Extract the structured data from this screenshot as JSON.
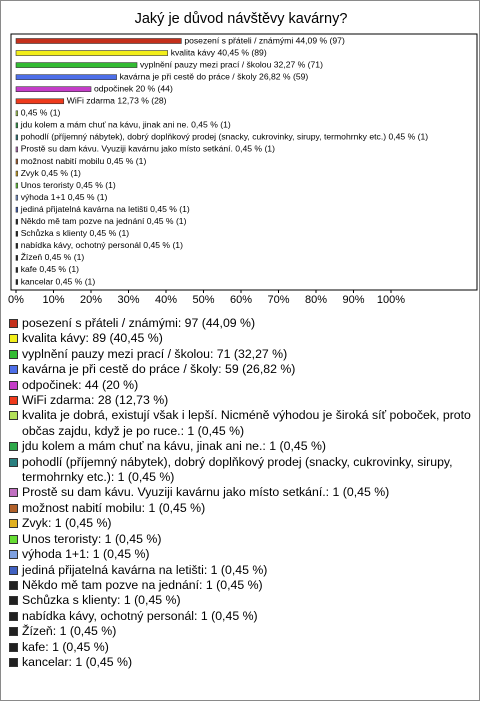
{
  "chart_data": {
    "type": "bar",
    "orientation": "horizontal",
    "title": "Jaký je důvod návštěvy kavárny?",
    "categories": [
      "posezení s přáteli / známými",
      "kvalita kávy",
      "vyplnění pauzy mezi prací / školou",
      "kavárna je při cestě do práce / školy",
      "odpočinek",
      "WiFi zdarma",
      "kvalita je dobrá, existují však i lepší. Nicméně výhodou je široká síť poboček, proto občas zajdu, když je po ruce.",
      "jdu kolem a mám chuť na kávu, jinak ani ne.",
      "pohodlí (příjemný nábytek), dobrý doplňkový prodej (snacky, cukrovinky, sirupy, termohrnky etc.)",
      "Prostě su dam kávu. Vyuziji kavárnu jako místo setkání.",
      "možnost nabití mobilu",
      "Zvyk",
      "Unos teroristy",
      "výhoda 1+1",
      "jediná přijatelná kavárna na letišti",
      "Někdo mě tam pozve na jednání",
      "Schůzka s klienty",
      "nabídka kávy, ochotný personál",
      "Žízeň",
      "kafe",
      "kancelar"
    ],
    "values": [
      44.09,
      40.45,
      32.27,
      26.82,
      20,
      12.73,
      0.45,
      0.45,
      0.45,
      0.45,
      0.45,
      0.45,
      0.45,
      0.45,
      0.45,
      0.45,
      0.45,
      0.45,
      0.45,
      0.45,
      0.45
    ],
    "value_labels": [
      "posezení s přáteli / známými 44,09 % (97)",
      "kvalita kávy 40,45 % (89)",
      "vyplnění pauzy mezi prací / školou 32,27 % (71)",
      "kavárna je při cestě do práce / školy 26,82 % (59)",
      "odpočinek 20 % (44)",
      "WiFi zdarma 12,73 % (28)",
      "0,45 % (1)",
      "jdu kolem a mám chuť na kávu, jinak ani ne. 0,45 % (1)",
      "pohodlí (příjemný nábytek), dobrý doplňkový prodej (snacky, cukrovinky, sirupy, termohrnky etc.) 0,45 % (1)",
      "Prostě su dam kávu. Vyuziji kavárnu jako místo setkání. 0,45 % (1)",
      "možnost nabití mobilu 0,45 % (1)",
      "Zvyk 0,45 % (1)",
      "Unos teroristy 0,45 % (1)",
      "výhoda 1+1 0,45 % (1)",
      "jediná přijatelná kavárna na letišti 0,45 % (1)",
      "Někdo mě tam pozve na jednání 0,45 % (1)",
      "Schůzka s klienty 0,45 % (1)",
      "nabídka kávy, ochotný personál 0,45 % (1)",
      "Žízeň 0,45 % (1)",
      "kafe 0,45 % (1)",
      "kancelar 0,45 % (1)"
    ],
    "colors": [
      "#c4301c",
      "#f2ee1a",
      "#33bb33",
      "#4d6ee8",
      "#c43dc8",
      "#ee3a1c",
      "#b3e05a",
      "#2ea84a",
      "#2a8080",
      "#c070c0",
      "#b0602a",
      "#e0b020",
      "#66dd33",
      "#7ea0e0",
      "#4060c0",
      "#202020",
      "#202020",
      "#202020",
      "#202020",
      "#202020",
      "#202020"
    ],
    "xlim": [
      0,
      100
    ],
    "xticks": [
      {
        "value": 0,
        "label": "0%"
      },
      {
        "value": 10,
        "label": "10%"
      },
      {
        "value": 20,
        "label": "20%"
      },
      {
        "value": 30,
        "label": "30%"
      },
      {
        "value": 40,
        "label": "40%"
      },
      {
        "value": 50,
        "label": "50%"
      },
      {
        "value": 60,
        "label": "60%"
      },
      {
        "value": 70,
        "label": "70%"
      },
      {
        "value": 80,
        "label": "80%"
      },
      {
        "value": 90,
        "label": "90%"
      },
      {
        "value": 100,
        "label": "100%"
      }
    ],
    "grid": false,
    "legend": {
      "position": "bottom",
      "labels": [
        "posezení s přáteli / známými: 97 (44,09 %)",
        "kvalita kávy: 89 (40,45 %)",
        "vyplnění pauzy mezi prací / školou: 71 (32,27 %)",
        "kavárna je při cestě do práce / školy: 59 (26,82 %)",
        "odpočinek: 44 (20 %)",
        "WiFi zdarma: 28 (12,73 %)",
        "kvalita je dobrá, existují však i lepší. Nicméně výhodou je široká síť poboček, proto občas zajdu, když je po ruce.: 1 (0,45 %)",
        "jdu kolem a mám chuť na kávu, jinak ani ne.: 1 (0,45 %)",
        "pohodlí (příjemný nábytek), dobrý doplňkový prodej (snacky, cukrovinky, sirupy, termohrnky etc.): 1 (0,45 %)",
        "Prostě su dam kávu. Vyuziji kavárnu jako místo setkání.: 1 (0,45 %)",
        "možnost nabití mobilu: 1 (0,45 %)",
        "Zvyk: 1 (0,45 %)",
        "Unos teroristy: 1 (0,45 %)",
        "výhoda 1+1: 1 (0,45 %)",
        "jediná přijatelná kavárna na letišti: 1 (0,45 %)",
        "Někdo mě tam pozve na jednání: 1 (0,45 %)",
        "Schůzka s klienty: 1 (0,45 %)",
        "nabídka kávy, ochotný personál: 1 (0,45 %)",
        "Žízeň: 1 (0,45 %)",
        "kafe: 1 (0,45 %)",
        "kancelar: 1 (0,45 %)"
      ]
    }
  }
}
